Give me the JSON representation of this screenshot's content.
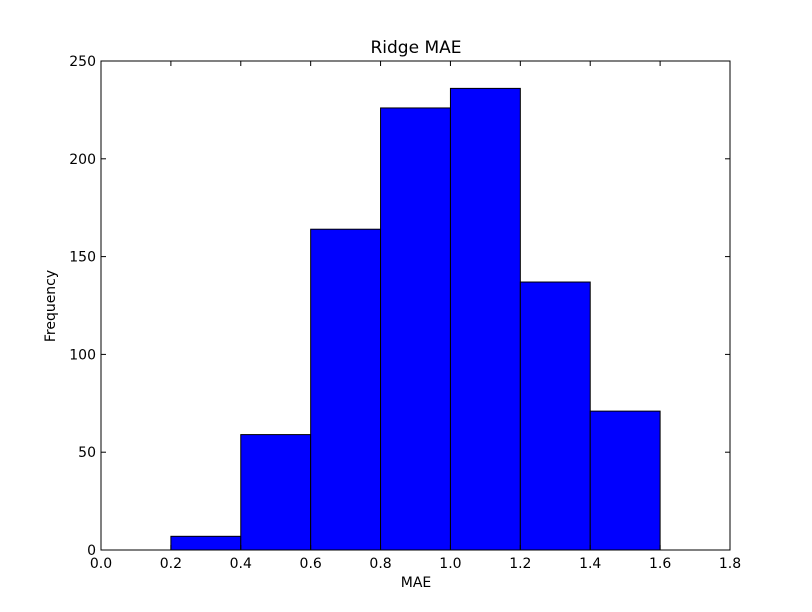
{
  "chart_data": {
    "type": "bar",
    "title": "Ridge MAE",
    "xlabel": "MAE",
    "ylabel": "Frequency",
    "xlim": [
      0.0,
      1.8
    ],
    "ylim": [
      0,
      250
    ],
    "x_ticks": [
      "0.0",
      "0.2",
      "0.4",
      "0.6",
      "0.8",
      "1.0",
      "1.2",
      "1.4",
      "1.6",
      "1.8"
    ],
    "y_ticks": [
      "0",
      "50",
      "100",
      "150",
      "200",
      "250"
    ],
    "bins": [
      {
        "x0": 0.2,
        "x1": 0.4,
        "value": 7
      },
      {
        "x0": 0.4,
        "x1": 0.6,
        "value": 59
      },
      {
        "x0": 0.6,
        "x1": 0.8,
        "value": 164
      },
      {
        "x0": 0.8,
        "x1": 1.0,
        "value": 226
      },
      {
        "x0": 1.0,
        "x1": 1.2,
        "value": 236
      },
      {
        "x0": 1.2,
        "x1": 1.4,
        "value": 137
      },
      {
        "x0": 1.4,
        "x1": 1.6,
        "value": 71
      }
    ],
    "bar_color": "#0000ff",
    "edge_color": "#000000",
    "grid": false
  }
}
